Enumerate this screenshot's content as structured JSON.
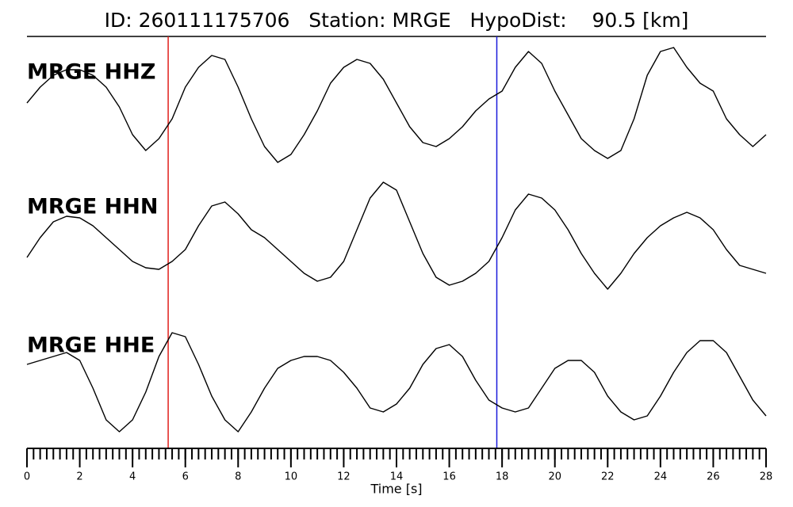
{
  "chart_data": {
    "type": "line",
    "title": "ID: 260111175706   Station: MRGE   HypoDist:    90.5 [km]",
    "xlabel": "Time [s]",
    "xlim": [
      0,
      28
    ],
    "xticks": [
      0,
      2,
      4,
      6,
      8,
      10,
      12,
      14,
      16,
      18,
      20,
      22,
      24,
      26,
      28
    ],
    "minor_tick_interval": 0.25,
    "ylim": [
      -80,
      80
    ],
    "label_color": "#4c9a00",
    "x": [
      0,
      0.5,
      1,
      1.5,
      2,
      2.5,
      3,
      3.5,
      4,
      4.5,
      5,
      5.5,
      6,
      6.5,
      7,
      7.5,
      8,
      8.5,
      9,
      9.5,
      10,
      10.5,
      11,
      11.5,
      12,
      12.5,
      13,
      13.5,
      14,
      14.5,
      15,
      15.5,
      16,
      16.5,
      17,
      17.5,
      18,
      18.5,
      19,
      19.5,
      20,
      20.5,
      21,
      21.5,
      22,
      22.5,
      23,
      23.5,
      24,
      24.5,
      25,
      25.5,
      26,
      26.5,
      27,
      27.5,
      28
    ],
    "series": [
      {
        "name": "MRGE HHZ",
        "color": "#000000",
        "values": [
          5,
          25,
          40,
          47,
          47,
          40,
          25,
          0,
          -35,
          -55,
          -40,
          -15,
          25,
          50,
          65,
          60,
          25,
          -15,
          -50,
          -70,
          -60,
          -35,
          -5,
          30,
          50,
          60,
          55,
          35,
          5,
          -25,
          -45,
          -50,
          -40,
          -25,
          -5,
          10,
          20,
          50,
          70,
          55,
          20,
          -10,
          -40,
          -55,
          -65,
          -55,
          -15,
          40,
          70,
          75,
          50,
          30,
          20,
          -15,
          -35,
          -50,
          -35
        ]
      },
      {
        "name": "MRGE HHN",
        "color": "#000000",
        "values": [
          -20,
          5,
          25,
          32,
          30,
          20,
          5,
          -10,
          -25,
          -33,
          -35,
          -25,
          -10,
          20,
          45,
          50,
          35,
          15,
          5,
          -10,
          -25,
          -40,
          -50,
          -45,
          -25,
          15,
          55,
          75,
          65,
          25,
          -15,
          -45,
          -55,
          -50,
          -40,
          -25,
          5,
          40,
          60,
          55,
          40,
          15,
          -15,
          -40,
          -60,
          -40,
          -15,
          5,
          20,
          30,
          37,
          30,
          15,
          -10,
          -30,
          -35,
          -40
        ]
      },
      {
        "name": "MRGE HHE",
        "color": "#000000",
        "values": [
          20,
          25,
          30,
          35,
          25,
          -10,
          -50,
          -65,
          -50,
          -15,
          30,
          60,
          55,
          20,
          -20,
          -50,
          -65,
          -40,
          -10,
          15,
          25,
          30,
          30,
          25,
          10,
          -10,
          -35,
          -40,
          -30,
          -10,
          20,
          40,
          45,
          30,
          0,
          -25,
          -35,
          -40,
          -35,
          -10,
          15,
          25,
          25,
          10,
          -20,
          -40,
          -50,
          -45,
          -20,
          10,
          35,
          50,
          50,
          35,
          5,
          -25,
          -45
        ]
      }
    ],
    "markers": [
      {
        "x": 5.35,
        "color": "#e0201b"
      },
      {
        "x": 17.8,
        "color": "#1a1adb"
      }
    ]
  }
}
